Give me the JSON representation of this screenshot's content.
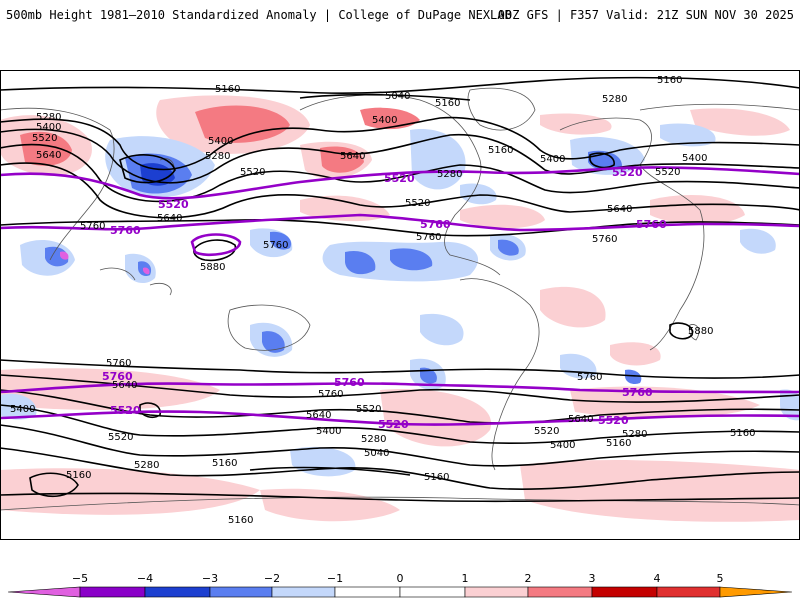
{
  "header": {
    "title_left": "500mb Height 1981–2010 Standardized Anomaly | College of DuPage NEXLAB",
    "title_right": "00Z GFS | F357 Valid: 21Z SUN NOV 30 2025"
  },
  "colors": {
    "neg5": "#e060e0",
    "neg4": "#8a00c8",
    "neg3": "#1c3fd0",
    "neg2": "#5a7ef0",
    "neg1": "#c4d8fb",
    "pos1": "#fbd0d3",
    "pos2": "#f47a82",
    "pos3": "#e03030",
    "pos4": "#c40000",
    "pos5": "#ff9a00",
    "contour": "#000000",
    "highlight": "#9400c8",
    "coast": "#555555"
  },
  "contour_labels": {
    "c5160_a": "5160",
    "c5160_b": "5160",
    "c5160_c": "5160",
    "c5160_d": "5160",
    "c5160_e": "5160",
    "c5160_f": "5160",
    "c5160_g": "5160",
    "c5160_h": "5160",
    "c5160_i": "5160",
    "c5160_j": "5160",
    "c5040_a": "5040",
    "c5040_b": "5040",
    "c5280_a": "5280",
    "c5280_b": "5280",
    "c5280_c": "5280",
    "c5280_d": "5280",
    "c5280_e": "5280",
    "c5280_f": "5280",
    "c5280_g": "5280",
    "c5400_a": "5400",
    "c5400_b": "5400",
    "c5400_c": "5400",
    "c5400_d": "5400",
    "c5400_e": "5400",
    "c5400_f": "5400",
    "c5400_g": "5400",
    "c5400_h": "5400",
    "c5520_a": "5520",
    "c5520_b": "5520",
    "c5520_c": "5520",
    "c5520_d": "5520",
    "c5520_e": "5520",
    "c5520_f": "5520",
    "c5520_g": "5520",
    "c5640_a": "5640",
    "c5640_b": "5640",
    "c5640_c": "5640",
    "c5640_d": "5640",
    "c5640_e": "5640",
    "c5640_f": "5640",
    "c5640_g": "5640",
    "c5760_a": "5760",
    "c5760_b": "5760",
    "c5760_c": "5760",
    "c5760_d": "5760",
    "c5760_e": "5760",
    "c5760_f": "5760",
    "c5760_g": "5760",
    "c5880_a": "5880",
    "c5880_b": "5880"
  },
  "highlight_labels": {
    "h5520_a": "5520",
    "h5520_b": "5520",
    "h5520_c": "5520",
    "h5520_d": "5520",
    "h5520_e": "5520",
    "h5520_f": "5520",
    "h5760_a": "5760",
    "h5760_b": "5760",
    "h5760_c": "5760",
    "h5760_d": "5760",
    "h5760_e": "5760",
    "h5760_f": "5760"
  },
  "colorbar": {
    "ticks": [
      "−5",
      "−4",
      "−3",
      "−2",
      "−1",
      "0",
      "1",
      "2",
      "3",
      "4",
      "5"
    ]
  }
}
